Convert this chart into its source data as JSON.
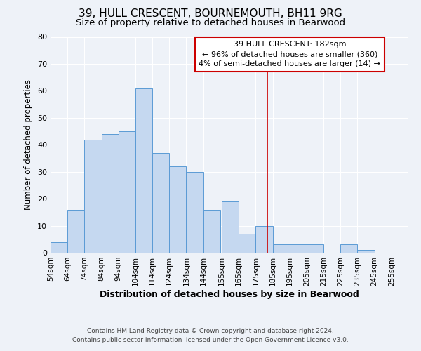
{
  "title": "39, HULL CRESCENT, BOURNEMOUTH, BH11 9RG",
  "subtitle": "Size of property relative to detached houses in Bearwood",
  "xlabel": "Distribution of detached houses by size in Bearwood",
  "ylabel": "Number of detached properties",
  "bar_left_edges": [
    54,
    64,
    74,
    84,
    94,
    104,
    114,
    124,
    134,
    144,
    155,
    165,
    175,
    185,
    195,
    205,
    215,
    225,
    235,
    245
  ],
  "bar_heights": [
    4,
    16,
    42,
    44,
    45,
    61,
    37,
    32,
    30,
    16,
    19,
    7,
    10,
    3,
    3,
    3,
    0,
    3,
    1,
    0
  ],
  "tick_labels": [
    "54sqm",
    "64sqm",
    "74sqm",
    "84sqm",
    "94sqm",
    "104sqm",
    "114sqm",
    "124sqm",
    "134sqm",
    "144sqm",
    "155sqm",
    "165sqm",
    "175sqm",
    "185sqm",
    "195sqm",
    "205sqm",
    "215sqm",
    "225sqm",
    "235sqm",
    "245sqm",
    "255sqm"
  ],
  "tick_positions": [
    54,
    64,
    74,
    84,
    94,
    104,
    114,
    124,
    134,
    144,
    155,
    165,
    175,
    185,
    195,
    205,
    215,
    225,
    235,
    245,
    255
  ],
  "xlim": [
    54,
    265
  ],
  "ylim": [
    0,
    80
  ],
  "yticks": [
    0,
    10,
    20,
    30,
    40,
    50,
    60,
    70,
    80
  ],
  "bar_color": "#c5d8f0",
  "bar_edge_color": "#5b9bd5",
  "vline_x": 182,
  "vline_color": "#cc0000",
  "annotation_title": "39 HULL CRESCENT: 182sqm",
  "annotation_line1": "← 96% of detached houses are smaller (360)",
  "annotation_line2": "4% of semi-detached houses are larger (14) →",
  "annotation_box_facecolor": "#ffffff",
  "annotation_box_edgecolor": "#cc0000",
  "footer_line1": "Contains HM Land Registry data © Crown copyright and database right 2024.",
  "footer_line2": "Contains public sector information licensed under the Open Government Licence v3.0.",
  "background_color": "#eef2f8",
  "grid_color": "#ffffff",
  "title_fontsize": 11,
  "subtitle_fontsize": 9.5,
  "xlabel_fontsize": 9,
  "ylabel_fontsize": 8.5,
  "tick_fontsize": 7.5,
  "annotation_fontsize": 8,
  "footer_fontsize": 6.5
}
